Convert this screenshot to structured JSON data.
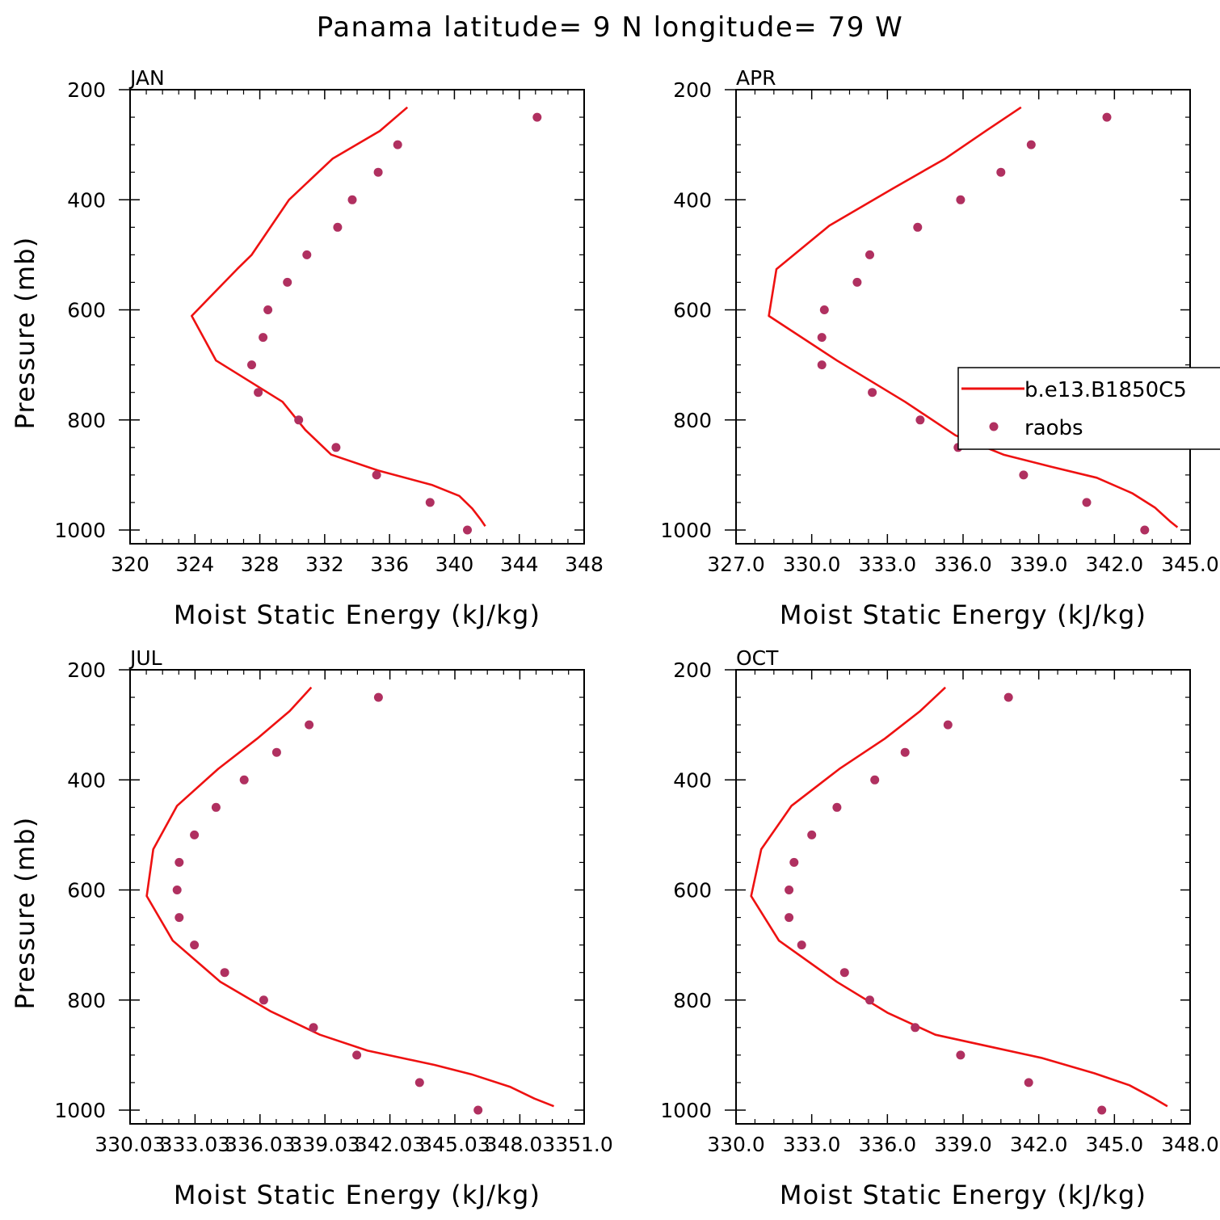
{
  "title": "Panama  latitude= 9 N longitude= 79 W",
  "colors": {
    "model_line": "#ee1111",
    "obs_marker": "#b03060"
  },
  "legend": {
    "items": [
      "b.e13.B1850C5",
      "raobs"
    ]
  },
  "chart_data": [
    {
      "type": "line",
      "panel_title": "JAN",
      "xlabel": "Moist Static Energy (kJ/kg)",
      "ylabel": "Pressure (mb)",
      "xlim": [
        320,
        348
      ],
      "ylim": [
        1000,
        200
      ],
      "x_ticks": [
        320,
        324,
        328,
        332,
        336,
        340,
        344,
        348
      ],
      "x_tick_labels": [
        "320",
        "324",
        "328",
        "332",
        "336",
        "340",
        "344",
        "348"
      ],
      "y_ticks": [
        200,
        400,
        600,
        800,
        1000
      ],
      "y_tick_labels": [
        "200",
        "400",
        "600",
        "800",
        "1000"
      ],
      "series": [
        {
          "name": "b.e13.B1850C5",
          "kind": "line",
          "points": [
            [
              337.1,
              232
            ],
            [
              335.4,
              275
            ],
            [
              332.5,
              325
            ],
            [
              329.8,
              400
            ],
            [
              327.5,
              500
            ],
            [
              326.6,
              526
            ],
            [
              323.8,
              611
            ],
            [
              325.3,
              692
            ],
            [
              329.4,
              767
            ],
            [
              330.8,
              818
            ],
            [
              332.4,
              863
            ],
            [
              335.3,
              892
            ],
            [
              338.6,
              918
            ],
            [
              340.3,
              938
            ],
            [
              341.1,
              961
            ],
            [
              341.6,
              980
            ],
            [
              341.9,
              993
            ]
          ]
        },
        {
          "name": "raobs",
          "kind": "markers",
          "points": [
            [
              345.1,
              250
            ],
            [
              336.5,
              300
            ],
            [
              335.3,
              350
            ],
            [
              333.7,
              400
            ],
            [
              332.8,
              450
            ],
            [
              330.9,
              500
            ],
            [
              329.7,
              550
            ],
            [
              328.5,
              600
            ],
            [
              328.2,
              650
            ],
            [
              327.5,
              700
            ],
            [
              327.9,
              750
            ],
            [
              330.4,
              800
            ],
            [
              332.7,
              850
            ],
            [
              335.2,
              900
            ],
            [
              338.5,
              950
            ],
            [
              340.8,
              1000
            ]
          ]
        }
      ]
    },
    {
      "type": "line",
      "panel_title": "APR",
      "xlabel": "Moist Static Energy (kJ/kg)",
      "ylabel": "",
      "xlim": [
        327,
        345
      ],
      "ylim": [
        1000,
        200
      ],
      "x_ticks": [
        327,
        330,
        333,
        336,
        339,
        342,
        345
      ],
      "x_tick_labels": [
        "327.0",
        "330.0",
        "333.0",
        "336.0",
        "339.0",
        "342.0",
        "345.0"
      ],
      "y_ticks": [
        200,
        400,
        600,
        800,
        1000
      ],
      "y_tick_labels": [
        "200",
        "400",
        "600",
        "800",
        "1000"
      ],
      "series": [
        {
          "name": "b.e13.B1850C5",
          "kind": "line",
          "points": [
            [
              338.3,
              232
            ],
            [
              336.9,
              275
            ],
            [
              335.3,
              325
            ],
            [
              333.2,
              380
            ],
            [
              330.7,
              447
            ],
            [
              328.6,
              526
            ],
            [
              328.3,
              611
            ],
            [
              331.0,
              692
            ],
            [
              333.7,
              767
            ],
            [
              335.7,
              828
            ],
            [
              337.6,
              863
            ],
            [
              339.5,
              885
            ],
            [
              341.3,
              905
            ],
            [
              342.7,
              933
            ],
            [
              343.6,
              959
            ],
            [
              344.2,
              984
            ],
            [
              344.5,
              995
            ]
          ]
        },
        {
          "name": "raobs",
          "kind": "markers",
          "points": [
            [
              341.7,
              250
            ],
            [
              338.7,
              300
            ],
            [
              337.5,
              350
            ],
            [
              335.9,
              400
            ],
            [
              334.2,
              450
            ],
            [
              332.3,
              500
            ],
            [
              331.8,
              550
            ],
            [
              330.5,
              600
            ],
            [
              330.4,
              650
            ],
            [
              330.4,
              700
            ],
            [
              332.4,
              750
            ],
            [
              334.3,
              800
            ],
            [
              335.8,
              850
            ],
            [
              338.4,
              900
            ],
            [
              340.9,
              950
            ],
            [
              343.2,
              1000
            ]
          ]
        }
      ]
    },
    {
      "type": "line",
      "panel_title": "JUL",
      "xlabel": "Moist Static Energy (kJ/kg)",
      "ylabel": "Pressure (mb)",
      "xlim": [
        330.03,
        351.0
      ],
      "ylim": [
        1000,
        200
      ],
      "x_ticks": [
        330.03,
        333.03,
        336.03,
        339.03,
        342.03,
        345.03,
        348.03,
        351.0
      ],
      "x_tick_labels": [
        "330.03",
        "333.03",
        "336.03",
        "339.03",
        "342.03",
        "345.03",
        "348.03",
        "351.0"
      ],
      "y_ticks": [
        200,
        400,
        600,
        800,
        1000
      ],
      "y_tick_labels": [
        "200",
        "400",
        "600",
        "800",
        "1000"
      ],
      "series": [
        {
          "name": "b.e13.B1850C5",
          "kind": "line",
          "points": [
            [
              338.4,
              232
            ],
            [
              337.4,
              275
            ],
            [
              335.9,
              325
            ],
            [
              334.1,
              380
            ],
            [
              332.2,
              447
            ],
            [
              331.1,
              526
            ],
            [
              330.8,
              611
            ],
            [
              332.0,
              692
            ],
            [
              334.2,
              767
            ],
            [
              336.5,
              820
            ],
            [
              338.8,
              863
            ],
            [
              341.0,
              892
            ],
            [
              344.1,
              918
            ],
            [
              345.8,
              935
            ],
            [
              347.6,
              958
            ],
            [
              348.7,
              979
            ],
            [
              349.6,
              993
            ]
          ]
        },
        {
          "name": "raobs",
          "kind": "markers",
          "points": [
            [
              341.5,
              250
            ],
            [
              338.3,
              300
            ],
            [
              336.8,
              350
            ],
            [
              335.3,
              400
            ],
            [
              334.0,
              450
            ],
            [
              333.0,
              500
            ],
            [
              332.3,
              550
            ],
            [
              332.2,
              600
            ],
            [
              332.3,
              650
            ],
            [
              333.0,
              700
            ],
            [
              334.4,
              750
            ],
            [
              336.2,
              800
            ],
            [
              338.5,
              850
            ],
            [
              340.5,
              900
            ],
            [
              343.4,
              950
            ],
            [
              346.1,
              1000
            ]
          ]
        }
      ]
    },
    {
      "type": "line",
      "panel_title": "OCT",
      "xlabel": "Moist Static Energy (kJ/kg)",
      "ylabel": "",
      "xlim": [
        330,
        348
      ],
      "ylim": [
        1000,
        200
      ],
      "x_ticks": [
        330,
        333,
        336,
        339,
        342,
        345,
        348
      ],
      "x_tick_labels": [
        "330.0",
        "333.0",
        "336.0",
        "339.0",
        "342.0",
        "345.0",
        "348.0"
      ],
      "y_ticks": [
        200,
        400,
        600,
        800,
        1000
      ],
      "y_tick_labels": [
        "200",
        "400",
        "600",
        "800",
        "1000"
      ],
      "series": [
        {
          "name": "b.e13.B1850C5",
          "kind": "line",
          "points": [
            [
              338.3,
              232
            ],
            [
              337.3,
              275
            ],
            [
              335.9,
              325
            ],
            [
              334.1,
              380
            ],
            [
              332.2,
              447
            ],
            [
              331.0,
              526
            ],
            [
              330.6,
              611
            ],
            [
              331.7,
              692
            ],
            [
              334.0,
              767
            ],
            [
              336.0,
              823
            ],
            [
              337.9,
              863
            ],
            [
              340.1,
              885
            ],
            [
              342.1,
              905
            ],
            [
              344.2,
              933
            ],
            [
              345.6,
              955
            ],
            [
              346.5,
              977
            ],
            [
              347.1,
              993
            ]
          ]
        },
        {
          "name": "raobs",
          "kind": "markers",
          "points": [
            [
              340.8,
              250
            ],
            [
              338.4,
              300
            ],
            [
              336.7,
              350
            ],
            [
              335.5,
              400
            ],
            [
              334.0,
              450
            ],
            [
              333.0,
              500
            ],
            [
              332.3,
              550
            ],
            [
              332.1,
              600
            ],
            [
              332.1,
              650
            ],
            [
              332.6,
              700
            ],
            [
              334.3,
              750
            ],
            [
              335.3,
              800
            ],
            [
              337.1,
              850
            ],
            [
              338.9,
              900
            ],
            [
              341.6,
              950
            ],
            [
              344.5,
              1000
            ]
          ]
        }
      ]
    }
  ]
}
